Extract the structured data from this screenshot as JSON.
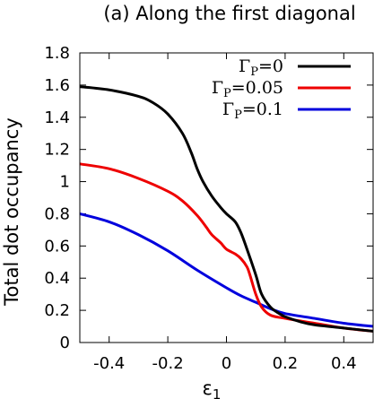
{
  "chart_data": {
    "type": "line",
    "title": "(a) Along the first diagonal",
    "xlabel": "ε",
    "xlabel_sub": "1",
    "ylabel": "Total dot occupancy",
    "xlim": [
      -0.5,
      0.5
    ],
    "ylim": [
      0,
      1.8
    ],
    "xticks": [
      "-0.4",
      "-0.2",
      "0",
      "0.2",
      "0.4"
    ],
    "xtick_values": [
      -0.4,
      -0.2,
      0,
      0.2,
      0.4
    ],
    "yticks": [
      "0",
      "0.2",
      "0.4",
      "0.6",
      "0.8",
      "1",
      "1.2",
      "1.4",
      "1.6",
      "1.8"
    ],
    "ytick_values": [
      0,
      0.2,
      0.4,
      0.6,
      0.8,
      1.0,
      1.2,
      1.4,
      1.6,
      1.8
    ],
    "grid": false,
    "legend_position": "top-right",
    "series": [
      {
        "name": "Γ",
        "name_sub": "P",
        "name_suffix": "=0",
        "color": "#000000",
        "x": [
          -0.5,
          -0.4,
          -0.3,
          -0.25,
          -0.2,
          -0.15,
          -0.12,
          -0.1,
          -0.08,
          -0.05,
          -0.02,
          0,
          0.03,
          0.05,
          0.07,
          0.1,
          0.12,
          0.15,
          0.18,
          0.2,
          0.25,
          0.3,
          0.4,
          0.5
        ],
        "y": [
          1.59,
          1.57,
          1.53,
          1.49,
          1.42,
          1.3,
          1.18,
          1.08,
          1.0,
          0.91,
          0.84,
          0.8,
          0.75,
          0.68,
          0.58,
          0.42,
          0.3,
          0.22,
          0.18,
          0.16,
          0.13,
          0.11,
          0.09,
          0.07
        ]
      },
      {
        "name": "Γ",
        "name_sub": "P",
        "name_suffix": "=0.05",
        "color": "#ee0000",
        "x": [
          -0.5,
          -0.4,
          -0.3,
          -0.2,
          -0.15,
          -0.1,
          -0.07,
          -0.05,
          -0.02,
          0,
          0.03,
          0.05,
          0.07,
          0.08,
          0.1,
          0.12,
          0.15,
          0.2,
          0.3,
          0.4,
          0.5
        ],
        "y": [
          1.11,
          1.08,
          1.02,
          0.94,
          0.88,
          0.79,
          0.72,
          0.67,
          0.62,
          0.58,
          0.55,
          0.52,
          0.47,
          0.42,
          0.3,
          0.22,
          0.17,
          0.15,
          0.12,
          0.09,
          0.07
        ]
      },
      {
        "name": "Γ",
        "name_sub": "P",
        "name_suffix": "=0.1",
        "color": "#0000dd",
        "x": [
          -0.5,
          -0.4,
          -0.3,
          -0.2,
          -0.1,
          0,
          0.05,
          0.1,
          0.15,
          0.2,
          0.3,
          0.4,
          0.5
        ],
        "y": [
          0.8,
          0.75,
          0.67,
          0.57,
          0.45,
          0.34,
          0.29,
          0.25,
          0.21,
          0.18,
          0.15,
          0.12,
          0.1
        ]
      }
    ]
  }
}
